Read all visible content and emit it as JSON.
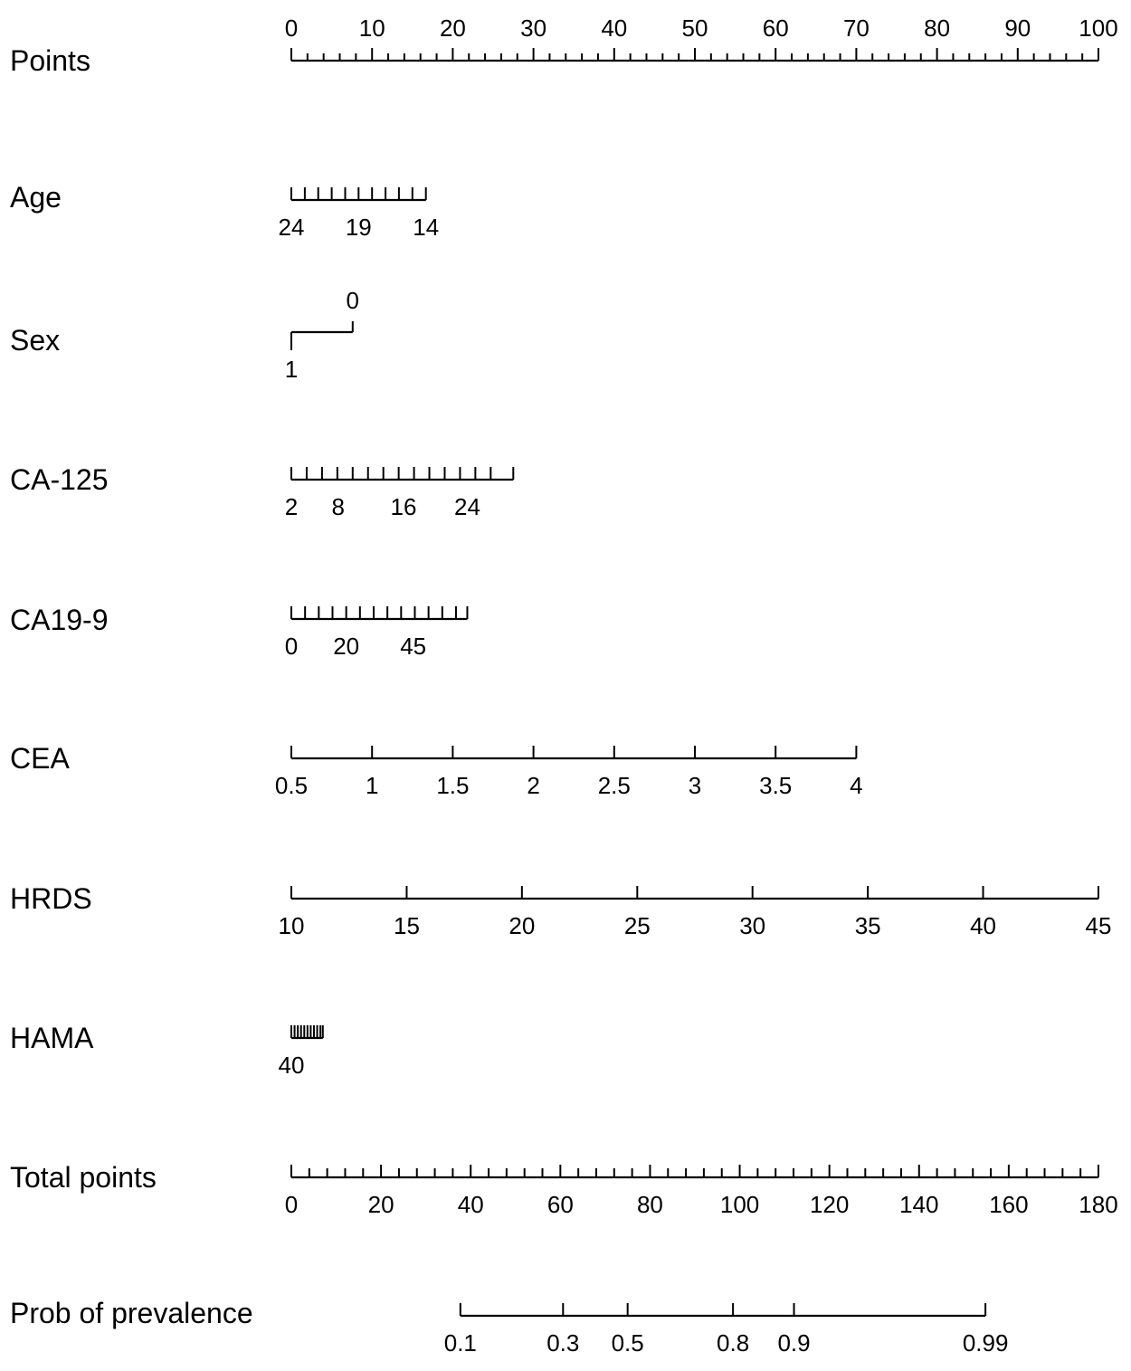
{
  "chart_data": {
    "type": "nomogram",
    "rows": [
      {
        "label": "Points",
        "ticks": [
          0,
          2,
          4,
          6,
          8,
          10,
          12,
          14,
          16,
          18,
          20,
          22,
          24,
          26,
          28,
          30,
          32,
          34,
          36,
          38,
          40,
          42,
          44,
          46,
          48,
          50,
          52,
          54,
          56,
          58,
          60,
          62,
          64,
          66,
          68,
          70,
          72,
          74,
          76,
          78,
          80,
          82,
          84,
          86,
          88,
          90,
          92,
          94,
          96,
          98,
          100
        ],
        "labels": [
          {
            "text": "0",
            "points": 0
          },
          {
            "text": "10",
            "points": 10
          },
          {
            "text": "20",
            "points": 20
          },
          {
            "text": "30",
            "points": 30
          },
          {
            "text": "40",
            "points": 40
          },
          {
            "text": "50",
            "points": 50
          },
          {
            "text": "60",
            "points": 60
          },
          {
            "text": "70",
            "points": 70
          },
          {
            "text": "80",
            "points": 80
          },
          {
            "text": "90",
            "points": 90
          },
          {
            "text": "100",
            "points": 100
          }
        ],
        "labelSide": "above",
        "majorEvery": 5
      },
      {
        "label": "Age",
        "ticks": [
          0,
          1.67,
          3.33,
          5.0,
          6.67,
          8.33,
          10.0,
          11.67,
          13.33,
          15.0,
          16.67
        ],
        "labels": [
          {
            "text": "24",
            "points": 0
          },
          {
            "text": "19",
            "points": 8.33
          },
          {
            "text": "14",
            "points": 16.67
          }
        ],
        "labelSide": "below"
      },
      {
        "label": "Sex",
        "ticks": [
          0,
          7.6
        ],
        "labels": [
          {
            "text": "1",
            "points": 0,
            "side": "below"
          },
          {
            "text": "0",
            "points": 7.6,
            "side": "above"
          }
        ],
        "labelSide": "mixed",
        "style": "bracket"
      },
      {
        "label": "CA-125",
        "ticks": [
          0,
          1.9,
          3.8,
          5.7,
          7.6,
          9.5,
          11.4,
          13.3,
          15.2,
          17.1,
          19.0,
          20.9,
          22.8,
          24.7,
          27.5
        ],
        "labels": [
          {
            "text": "2",
            "points": 0
          },
          {
            "text": "8",
            "points": 5.8
          },
          {
            "text": "16",
            "points": 13.9
          },
          {
            "text": "24",
            "points": 21.8
          }
        ],
        "labelSide": "below"
      },
      {
        "label": "CA19-9",
        "ticks": [
          0,
          1.7,
          3.4,
          5.1,
          6.8,
          8.5,
          10.2,
          11.9,
          13.6,
          15.3,
          17.0,
          18.7,
          20.4,
          21.8
        ],
        "labels": [
          {
            "text": "0",
            "points": 0
          },
          {
            "text": "20",
            "points": 6.8
          },
          {
            "text": "45",
            "points": 15.1
          }
        ],
        "labelSide": "below"
      },
      {
        "label": "CEA",
        "ticks": [
          0,
          10,
          20,
          30,
          40,
          50,
          60,
          70
        ],
        "labels": [
          {
            "text": "0.5",
            "points": 0
          },
          {
            "text": "1",
            "points": 10
          },
          {
            "text": "1.5",
            "points": 20
          },
          {
            "text": "2",
            "points": 30
          },
          {
            "text": "2.5",
            "points": 40
          },
          {
            "text": "3",
            "points": 50
          },
          {
            "text": "3.5",
            "points": 60
          },
          {
            "text": "4",
            "points": 70
          }
        ],
        "labelSide": "below"
      },
      {
        "label": "HRDS",
        "ticks": [
          0,
          14.29,
          28.57,
          42.86,
          57.14,
          71.43,
          85.71,
          100
        ],
        "labels": [
          {
            "text": "10",
            "points": 0
          },
          {
            "text": "15",
            "points": 14.29
          },
          {
            "text": "20",
            "points": 28.57
          },
          {
            "text": "25",
            "points": 42.86
          },
          {
            "text": "30",
            "points": 57.14
          },
          {
            "text": "35",
            "points": 71.43
          },
          {
            "text": "40",
            "points": 85.71
          },
          {
            "text": "45",
            "points": 100
          }
        ],
        "labelSide": "below"
      },
      {
        "label": "HAMA",
        "ticks": [
          0,
          0.4,
          0.8,
          1.2,
          1.6,
          2.0,
          2.4,
          2.8,
          3.2,
          3.6,
          3.9
        ],
        "labels": [
          {
            "text": "40",
            "points": 0
          }
        ],
        "labelSide": "below"
      },
      {
        "label": "Total points",
        "ticks": [
          0,
          4,
          8,
          12,
          16,
          20,
          24,
          28,
          32,
          36,
          40,
          44,
          48,
          52,
          56,
          60,
          64,
          68,
          72,
          76,
          80,
          84,
          88,
          92,
          96,
          100,
          104,
          108,
          112,
          116,
          120,
          124,
          128,
          132,
          136,
          140,
          144,
          148,
          152,
          156,
          160,
          164,
          168,
          172,
          176,
          180
        ],
        "labels": [
          {
            "text": "0",
            "total": 0
          },
          {
            "text": "20",
            "total": 20
          },
          {
            "text": "40",
            "total": 40
          },
          {
            "text": "60",
            "total": 60
          },
          {
            "text": "80",
            "total": 80
          },
          {
            "text": "100",
            "total": 100
          },
          {
            "text": "120",
            "total": 120
          },
          {
            "text": "140",
            "total": 140
          },
          {
            "text": "160",
            "total": 160
          },
          {
            "text": "180",
            "total": 180
          }
        ],
        "scale": "total",
        "totalRange": [
          0,
          180
        ],
        "labelSide": "below",
        "majorEvery": 5
      },
      {
        "label": "Prob of prevalence",
        "ticks": [
          37.7,
          60.6,
          75.0,
          98.5,
          112.1,
          154.8
        ],
        "labels": [
          {
            "text": "0.1",
            "total": 37.7
          },
          {
            "text": "0.3",
            "total": 60.6
          },
          {
            "text": "0.5",
            "total": 75.0
          },
          {
            "text": "0.8",
            "total": 98.5
          },
          {
            "text": "0.9",
            "total": 112.1
          },
          {
            "text": "0.99",
            "total": 154.8
          }
        ],
        "scale": "total",
        "totalRange": [
          0,
          180
        ],
        "labelSide": "below"
      }
    ]
  }
}
